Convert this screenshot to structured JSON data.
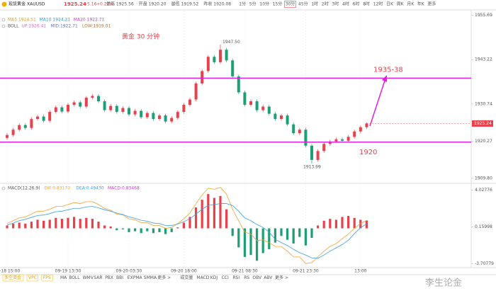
{
  "header": {
    "name": "现货黄金",
    "symbol": "XAUUSD",
    "price": "1925.24",
    "change": "+5.16",
    "change_pct": "+0.27%",
    "stats": [
      "最高 1925.56",
      "开盘 1920.20",
      "最低 1919.52",
      "昨收 1920.08"
    ]
  },
  "timeframes": [
    "1分",
    "5分",
    "10分",
    "15分",
    "30分",
    "45分",
    "1时",
    "2时",
    "3时",
    "4时",
    "6时",
    "8时",
    "12时",
    "日K",
    "周K",
    "月K",
    "年K",
    "更多"
  ],
  "ma_legend": [
    "MA5 1924.51",
    "MA10 1924.21",
    "MA20 1922.71"
  ],
  "boll_legend": [
    "BOLL",
    "UP:1926.41",
    "MID:1922.71",
    "LOW:1919.01"
  ],
  "macd_legend": [
    "MACD(12,26,9)",
    "DIF:0.83170",
    "DEA:0.49430",
    "MACD:0.83468"
  ],
  "tabs": [
    "多空资金",
    "VPC",
    "FPS"
  ],
  "main_indicators": [
    "MA",
    "BOLL",
    "WMV",
    "SAR",
    "PBX",
    "BBI",
    "EXPMA",
    "SMMA",
    "更多 >"
  ],
  "sub_indicators": [
    "成交量",
    "MACD",
    "KDJ",
    "CCI",
    "RSI",
    "RS",
    "OBV",
    "ABV",
    "更多 >"
  ],
  "watermark": "李生论金",
  "chart_data": [
    {
      "type": "candlestick",
      "open": [
        1921.2,
        1922.0,
        1923.5,
        1924.8,
        1924.0,
        1926.5,
        1927.2,
        1926.0,
        1928.5,
        1929.8,
        1928.6,
        1930.5,
        1931.2,
        1930.0,
        1932.5,
        1933.0,
        1931.5,
        1929.0,
        1930.2,
        1928.5,
        1929.6,
        1927.8,
        1928.8,
        1927.0,
        1928.2,
        1926.5,
        1927.5,
        1925.8,
        1926.8,
        1928.5,
        1930.5,
        1932.0,
        1936.5,
        1940.0,
        1944.0,
        1942.5,
        1946.0,
        1943.0,
        1938.5,
        1934.0,
        1930.5,
        1931.5,
        1929.0,
        1930.0,
        1928.0,
        1926.5,
        1927.5,
        1925.0,
        1922.5,
        1923.5,
        1919.0,
        1915.0,
        1917.5,
        1919.5,
        1920.2,
        1920.8,
        1920.4,
        1921.5,
        1923.0,
        1924.2
      ],
      "high": [
        1922.5,
        1924.0,
        1925.3,
        1925.3,
        1927.0,
        1927.7,
        1927.7,
        1929.0,
        1930.3,
        1930.3,
        1931.0,
        1931.7,
        1931.7,
        1933.0,
        1933.5,
        1933.5,
        1932.0,
        1930.7,
        1930.7,
        1930.1,
        1930.1,
        1929.3,
        1929.3,
        1928.7,
        1928.7,
        1928.0,
        1928.0,
        1927.3,
        1929.0,
        1931.0,
        1932.5,
        1937.0,
        1940.5,
        1944.5,
        1944.5,
        1947.5,
        1946.5,
        1943.5,
        1939.0,
        1934.5,
        1932.0,
        1932.0,
        1930.5,
        1930.5,
        1928.5,
        1928.0,
        1928.0,
        1925.5,
        1924.0,
        1924.0,
        1919.5,
        1918.0,
        1920.0,
        1920.7,
        1921.3,
        1921.3,
        1922.0,
        1923.5,
        1924.7,
        1925.56
      ],
      "low": [
        1920.7,
        1921.5,
        1923.0,
        1923.5,
        1923.5,
        1926.0,
        1925.5,
        1925.5,
        1928.0,
        1928.1,
        1928.1,
        1930.0,
        1929.5,
        1929.5,
        1932.0,
        1931.0,
        1928.5,
        1928.5,
        1928.0,
        1928.0,
        1927.3,
        1927.3,
        1926.5,
        1926.5,
        1926.0,
        1926.0,
        1925.3,
        1925.3,
        1926.3,
        1928.0,
        1930.0,
        1931.5,
        1936.0,
        1939.5,
        1942.0,
        1942.0,
        1942.5,
        1938.0,
        1933.5,
        1930.0,
        1930.0,
        1928.5,
        1928.5,
        1927.5,
        1926.0,
        1926.0,
        1924.5,
        1922.0,
        1922.0,
        1918.5,
        1913.99,
        1914.5,
        1917.0,
        1919.0,
        1919.7,
        1919.9,
        1919.9,
        1921.0,
        1922.5,
        1923.7
      ],
      "close": [
        1922.0,
        1923.5,
        1924.8,
        1924.0,
        1926.5,
        1927.2,
        1926.0,
        1928.5,
        1929.8,
        1928.6,
        1930.5,
        1931.2,
        1930.0,
        1932.5,
        1933.0,
        1931.5,
        1929.0,
        1930.2,
        1928.5,
        1929.6,
        1927.8,
        1928.8,
        1927.0,
        1928.2,
        1926.5,
        1927.5,
        1925.8,
        1926.8,
        1928.5,
        1930.5,
        1932.0,
        1936.5,
        1940.0,
        1944.0,
        1942.5,
        1946.0,
        1943.0,
        1938.5,
        1934.0,
        1930.5,
        1931.5,
        1929.0,
        1930.0,
        1928.0,
        1926.5,
        1927.5,
        1925.0,
        1922.5,
        1923.5,
        1919.0,
        1915.0,
        1917.5,
        1919.5,
        1920.2,
        1920.8,
        1920.4,
        1921.5,
        1923.0,
        1924.2,
        1925.24
      ],
      "ylim": [
        1908.8,
        1957.0
      ],
      "yticks": [
        1955.69,
        1943.22,
        1930.74,
        1920.27,
        {
          "value": 1909.8,
          "label": "1909.80"
        }
      ],
      "xticks": [
        {
          "value": 0,
          "label": "09-18 15:00"
        },
        {
          "value": 10,
          "label": "09-19 13:30"
        },
        {
          "value": 20,
          "label": "09-20 03:30"
        },
        {
          "value": 29,
          "label": "09-20 18:00"
        },
        {
          "value": 39,
          "label": "09-21 08:30"
        },
        {
          "value": 49,
          "label": "09-21 23:30"
        },
        {
          "value": 58,
          "label": "13:00"
        }
      ],
      "up_color": "#e8414c",
      "down_color": "#1c9f74",
      "levels": [
        1938,
        1920
      ],
      "level_color": "#e020e0",
      "title": "黄金 30 分钟",
      "level_labels": [
        "1935-38",
        "1920"
      ],
      "high_label": "1947.50",
      "low_label": "1913.99"
    },
    {
      "type": "macd",
      "series": [
        {
          "color": "#f0a030",
          "values": [
            0.5,
            0.8,
            1.1,
            1.2,
            1.5,
            1.8,
            1.8,
            2.0,
            2.3,
            2.3,
            2.5,
            2.7,
            2.6,
            2.8,
            2.8,
            2.5,
            2.1,
            1.9,
            1.5,
            1.4,
            1.0,
            0.9,
            0.6,
            0.6,
            0.3,
            0.3,
            0.0,
            0.1,
            0.5,
            1.0,
            1.6,
            2.6,
            3.5,
            4.2,
            4.1,
            4.3,
            3.6,
            2.0,
            0.8,
            -0.4,
            -0.6,
            -1.3,
            -1.2,
            -1.5,
            -1.9,
            -1.9,
            -2.4,
            -3.0,
            -3.0,
            -3.7,
            -3.6,
            -3.0,
            -2.4,
            -1.9,
            -1.6,
            -1.1,
            -0.6,
            0.0,
            0.5,
            0.83
          ]
        },
        {
          "color": "#3aa0e0",
          "values": [
            0.35,
            0.55,
            0.8,
            0.95,
            1.15,
            1.35,
            1.4,
            1.55,
            1.75,
            1.8,
            1.95,
            2.1,
            2.1,
            2.25,
            2.3,
            2.15,
            1.95,
            1.8,
            1.6,
            1.45,
            1.2,
            1.05,
            0.85,
            0.75,
            0.55,
            0.5,
            0.3,
            0.3,
            0.45,
            0.7,
            1.0,
            1.5,
            2.0,
            2.4,
            2.5,
            2.6,
            2.6,
            2.4,
            1.8,
            1.1,
            0.8,
            0.4,
            0.1,
            -0.4,
            -1.15,
            -1.5,
            -1.8,
            -2.2,
            -2.55,
            -2.8,
            -3.1,
            -3.15,
            -2.8,
            -2.4,
            -2.05,
            -1.7,
            -1.25,
            -0.55,
            0.05,
            0.49
          ]
        }
      ],
      "hist": [
        0.3,
        0.5,
        0.6,
        0.5,
        0.7,
        0.9,
        0.8,
        0.9,
        1.1,
        1.0,
        1.1,
        1.2,
        1.0,
        1.1,
        1.0,
        0.7,
        0.3,
        0.2,
        -0.2,
        -0.1,
        -0.4,
        -0.3,
        -0.5,
        -0.3,
        -0.5,
        -0.4,
        -0.6,
        -0.4,
        0.1,
        0.6,
        1.2,
        2.2,
        3.0,
        3.6,
        3.2,
        3.4,
        2.0,
        -0.8,
        -2.0,
        -3.0,
        -2.8,
        -3.4,
        -2.6,
        -2.2,
        -1.5,
        -0.8,
        -1.2,
        -1.6,
        -0.9,
        -1.8,
        -1.0,
        0.3,
        0.8,
        1.0,
        0.9,
        1.2,
        1.3,
        1.1,
        0.9,
        0.83
      ],
      "ylim": [
        -3.9,
        4.5
      ],
      "yticks": [
        4.02776,
        0.15998,
        -3.70779
      ]
    }
  ]
}
